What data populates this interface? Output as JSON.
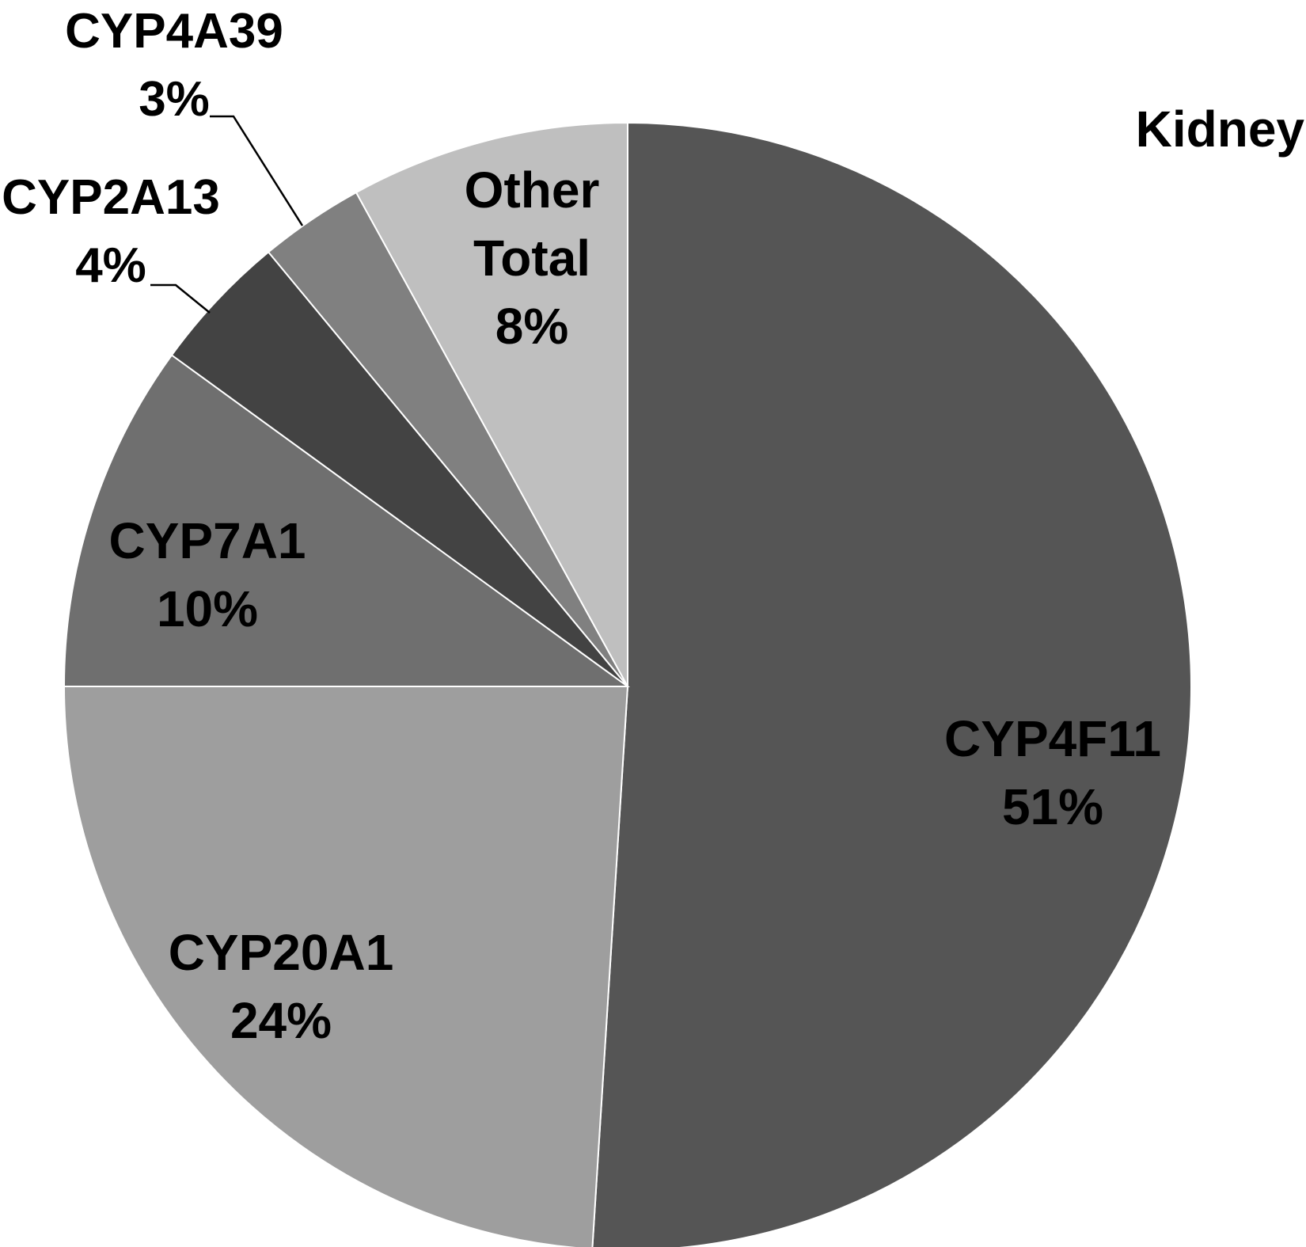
{
  "chart_data": {
    "type": "pie",
    "title": "Kidney",
    "slices": [
      {
        "name": "CYP4F11",
        "value": 51,
        "label": "51%",
        "color": "#555555"
      },
      {
        "name": "CYP20A1",
        "value": 24,
        "label": "24%",
        "color": "#9e9e9e"
      },
      {
        "name": "CYP7A1",
        "value": 10,
        "label": "10%",
        "color": "#6f6f6f"
      },
      {
        "name": "CYP2A13",
        "value": 4,
        "label": "4%",
        "color": "#434343"
      },
      {
        "name": "CYP4A39",
        "value": 3,
        "label": "3%",
        "color": "#808080"
      },
      {
        "name": "Other Total",
        "name_lines": [
          "Other",
          "Total"
        ],
        "value": 8,
        "label": "8%",
        "color": "#bfbfbf"
      }
    ],
    "start_angle": "12 o'clock",
    "direction": "clockwise"
  }
}
